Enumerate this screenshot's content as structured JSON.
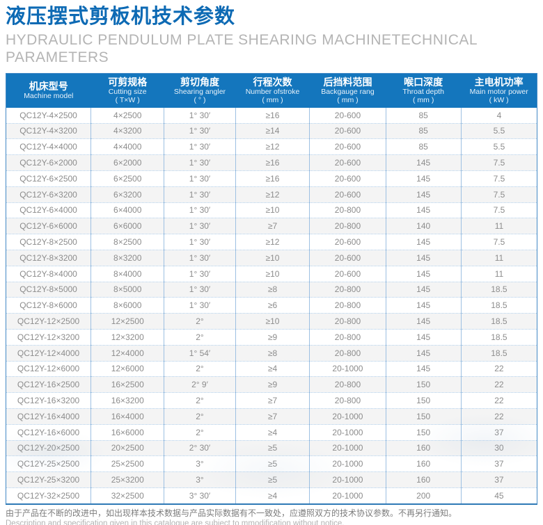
{
  "page": {
    "title_zh": "液压摆式剪板机技术参数",
    "subtitle_en_line1": "HYDRAULIC PENDULUM PLATE SHEARING MACHINETECHNICAL",
    "subtitle_en_line2": "PARAMETERS"
  },
  "table": {
    "columns": [
      {
        "zh": "机床型号",
        "en": "Machine model",
        "unit": ""
      },
      {
        "zh": "可剪规格",
        "en": "Cutting size",
        "unit": "( T×W )"
      },
      {
        "zh": "剪切角度",
        "en": "Shearing angler",
        "unit": "( ° )"
      },
      {
        "zh": "行程次数",
        "en": "Number ofstroke",
        "unit": "( mm )"
      },
      {
        "zh": "后挡料范围",
        "en": "Backgauge rang",
        "unit": "( mm )"
      },
      {
        "zh": "喉口深度",
        "en": "Throat depth",
        "unit": "( mm )"
      },
      {
        "zh": "主电机功率",
        "en": "Main motor power",
        "unit": "( kW )"
      }
    ],
    "rows": [
      [
        "QC12Y-4×2500",
        "4×2500",
        "1° 30′",
        "≥16",
        "20-600",
        "85",
        "4"
      ],
      [
        "QC12Y-4×3200",
        "4×3200",
        "1° 30′",
        "≥14",
        "20-600",
        "85",
        "5.5"
      ],
      [
        "QC12Y-4×4000",
        "4×4000",
        "1° 30′",
        "≥12",
        "20-600",
        "85",
        "5.5"
      ],
      [
        "QC12Y-6×2000",
        "6×2000",
        "1° 30′",
        "≥16",
        "20-600",
        "145",
        "7.5"
      ],
      [
        "QC12Y-6×2500",
        "6×2500",
        "1° 30′",
        "≥16",
        "20-600",
        "145",
        "7.5"
      ],
      [
        "QC12Y-6×3200",
        "6×3200",
        "1° 30′",
        "≥12",
        "20-600",
        "145",
        "7.5"
      ],
      [
        "QC12Y-6×4000",
        "6×4000",
        "1° 30′",
        "≥10",
        "20-800",
        "145",
        "7.5"
      ],
      [
        "QC12Y-6×6000",
        "6×6000",
        "1° 30′",
        "≥7",
        "20-800",
        "140",
        "11"
      ],
      [
        "QC12Y-8×2500",
        "8×2500",
        "1° 30′",
        "≥12",
        "20-600",
        "145",
        "7.5"
      ],
      [
        "QC12Y-8×3200",
        "8×3200",
        "1° 30′",
        "≥10",
        "20-600",
        "145",
        "11"
      ],
      [
        "QC12Y-8×4000",
        "8×4000",
        "1° 30′",
        "≥10",
        "20-600",
        "145",
        "11"
      ],
      [
        "QC12Y-8×5000",
        "8×5000",
        "1° 30′",
        "≥8",
        "20-800",
        "145",
        "18.5"
      ],
      [
        "QC12Y-8×6000",
        "8×6000",
        "1° 30′",
        "≥6",
        "20-800",
        "145",
        "18.5"
      ],
      [
        "QC12Y-12×2500",
        "12×2500",
        "2°",
        "≥10",
        "20-800",
        "145",
        "18.5"
      ],
      [
        "QC12Y-12×3200",
        "12×3200",
        "2°",
        "≥9",
        "20-800",
        "145",
        "18.5"
      ],
      [
        "QC12Y-12×4000",
        "12×4000",
        "1° 54′",
        "≥8",
        "20-800",
        "145",
        "18.5"
      ],
      [
        "QC12Y-12×6000",
        "12×6000",
        "2°",
        "≥4",
        "20-1000",
        "145",
        "22"
      ],
      [
        "QC12Y-16×2500",
        "16×2500",
        "2° 9′",
        "≥9",
        "20-800",
        "150",
        "22"
      ],
      [
        "QC12Y-16×3200",
        "16×3200",
        "2°",
        "≥7",
        "20-800",
        "150",
        "22"
      ],
      [
        "QC12Y-16×4000",
        "16×4000",
        "2°",
        "≥7",
        "20-1000",
        "150",
        "22"
      ],
      [
        "QC12Y-16×6000",
        "16×6000",
        "2°",
        "≥4",
        "20-1000",
        "150",
        "37"
      ],
      [
        "QC12Y-20×2500",
        "20×2500",
        "2° 30′",
        "≥5",
        "20-1000",
        "160",
        "30"
      ],
      [
        "QC12Y-25×2500",
        "25×2500",
        "3°",
        "≥5",
        "20-1000",
        "160",
        "37"
      ],
      [
        "QC12Y-25×3200",
        "25×3200",
        "3°",
        "≥5",
        "20-1000",
        "160",
        "37"
      ],
      [
        "QC12Y-32×2500",
        "32×2500",
        "3° 30′",
        "≥4",
        "20-1000",
        "200",
        "45"
      ]
    ]
  },
  "footer": {
    "note_zh": "由于产品在不断的改进中，如出现样本技术数据与产品实际数据有不一致处，应遵照双方的技术协议参数。不再另行通知。",
    "note_en": "Description and specification given in this catalogue are subiect to mmodification without notice."
  },
  "colors": {
    "title_blue": "#0d6ab4",
    "header_blue": "#1476bd",
    "body_text_gray": "#8c8c8c",
    "subtitle_gray": "#b4b4b4",
    "zebra_row": "#f4f4f4",
    "grid_blue": "#9dc0e2"
  }
}
